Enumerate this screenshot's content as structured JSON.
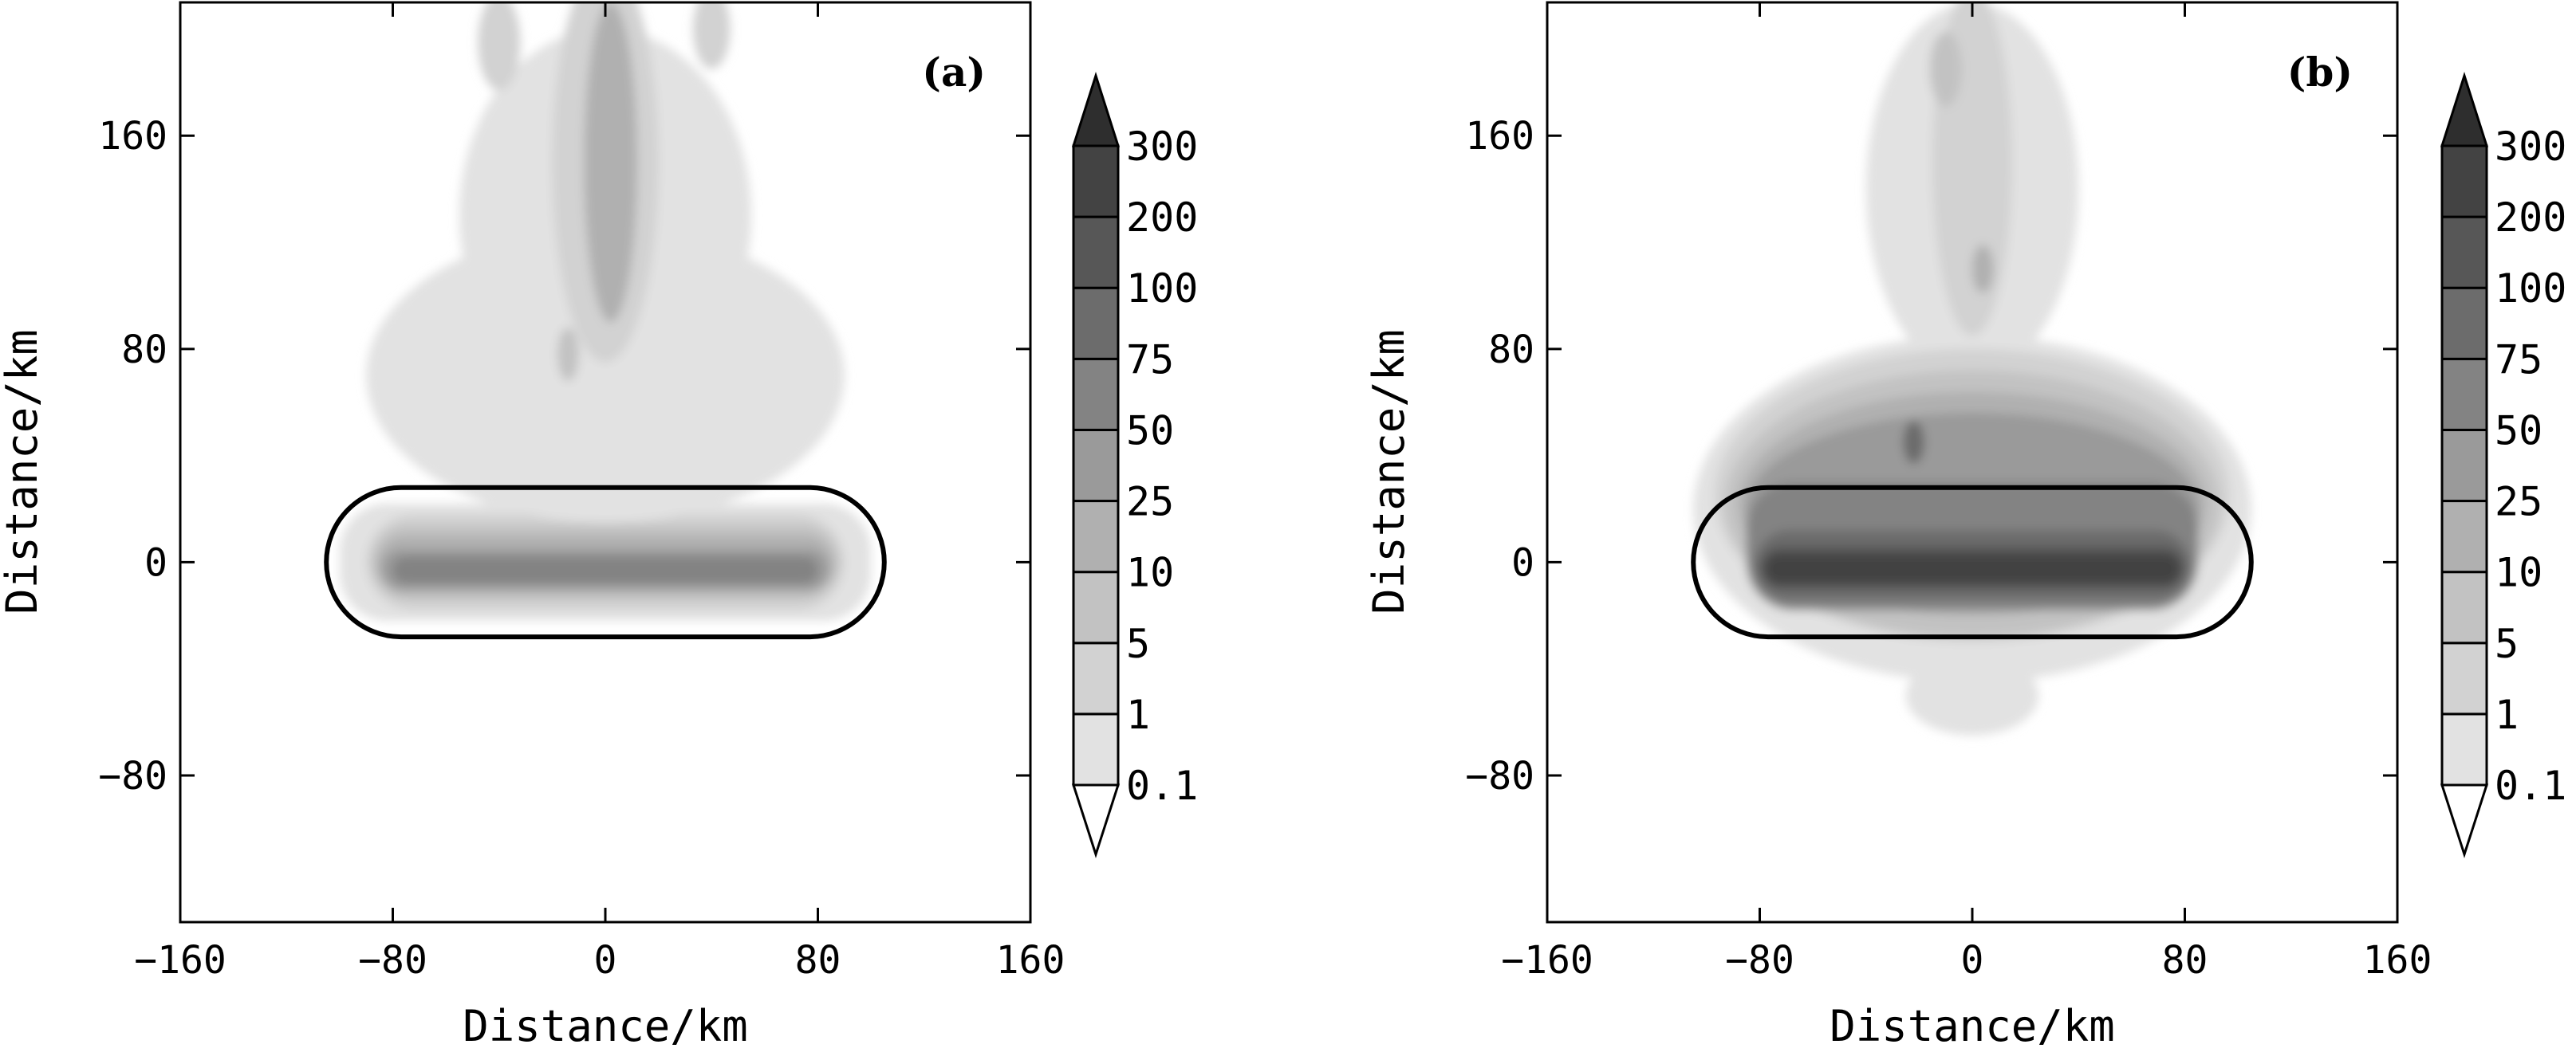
{
  "chart_data": [
    {
      "type": "heatmap",
      "panel_label": "(a)",
      "xlabel": "Distance/km",
      "ylabel": "Distance/km",
      "xlim": [
        -160,
        160
      ],
      "ylim": [
        -135,
        210
      ],
      "xticks": [
        -160,
        -80,
        0,
        80,
        160
      ],
      "xtick_labels": [
        "−160",
        "−80",
        "0",
        "80",
        "160"
      ],
      "yticks": [
        -80,
        0,
        80,
        160
      ],
      "ytick_labels": [
        "−80",
        "0",
        "80",
        "160"
      ],
      "grid": false,
      "outline_region": {
        "x_from": -105,
        "x_to": 105,
        "y_from": -28,
        "y_to": 28,
        "shape": "stadium"
      },
      "colorbar": {
        "levels": [
          "0.1",
          "1",
          "5",
          "10",
          "25",
          "50",
          "75",
          "100",
          "200",
          "300"
        ],
        "colors": [
          "#e2e2e2",
          "#d2d2d2",
          "#c2c2c2",
          "#b0b0b0",
          "#9a9a9a",
          "#838383",
          "#6c6c6c",
          "#575757",
          "#434343",
          "#2e2e2e"
        ],
        "extend": "both"
      },
      "features": [
        {
          "level": 0,
          "kind": "rect",
          "x": [
            -100,
            100
          ],
          "y": [
            -22,
            22
          ]
        },
        {
          "level": 1,
          "kind": "rect",
          "x": [
            -90,
            90
          ],
          "y": [
            -18,
            18
          ]
        },
        {
          "level": 2,
          "kind": "rect",
          "x": [
            -88,
            88
          ],
          "y": [
            -14,
            14
          ]
        },
        {
          "level": 3,
          "kind": "rect",
          "x": [
            -86,
            86
          ],
          "y": [
            -12,
            10
          ]
        },
        {
          "level": 4,
          "kind": "rect",
          "x": [
            -84,
            84
          ],
          "y": [
            -10,
            5
          ]
        },
        {
          "level": 5,
          "kind": "rect",
          "x": [
            -80,
            80
          ],
          "y": [
            -8,
            2
          ]
        },
        {
          "level": 0,
          "kind": "ellipse",
          "cx": 0,
          "cy": 70,
          "rx": 90,
          "ry": 55
        },
        {
          "level": 0,
          "kind": "ellipse",
          "cx": 0,
          "cy": 130,
          "rx": 55,
          "ry": 70
        },
        {
          "level": 1,
          "kind": "ellipse",
          "cx": 0,
          "cy": 150,
          "rx": 20,
          "ry": 75
        },
        {
          "level": 3,
          "kind": "ellipse",
          "cx": 2,
          "cy": 150,
          "rx": 10,
          "ry": 60
        },
        {
          "level": 1,
          "kind": "ellipse",
          "cx": -40,
          "cy": 195,
          "rx": 8,
          "ry": 18
        },
        {
          "level": 1,
          "kind": "ellipse",
          "cx": 40,
          "cy": 200,
          "rx": 7,
          "ry": 15
        },
        {
          "level": 2,
          "kind": "ellipse",
          "cx": -14,
          "cy": 78,
          "rx": 4,
          "ry": 10
        }
      ]
    },
    {
      "type": "heatmap",
      "panel_label": "(b)",
      "xlabel": "Distance/km",
      "ylabel": "Distance/km",
      "xlim": [
        -160,
        160
      ],
      "ylim": [
        -135,
        210
      ],
      "xticks": [
        -160,
        -80,
        0,
        80,
        160
      ],
      "xtick_labels": [
        "−160",
        "−80",
        "0",
        "80",
        "160"
      ],
      "yticks": [
        -80,
        0,
        80,
        160
      ],
      "ytick_labels": [
        "−80",
        "0",
        "80",
        "160"
      ],
      "grid": false,
      "outline_region": {
        "x_from": -105,
        "x_to": 105,
        "y_from": -28,
        "y_to": 28,
        "shape": "stadium"
      },
      "colorbar": {
        "levels": [
          "0.1",
          "1",
          "5",
          "10",
          "25",
          "50",
          "75",
          "100",
          "200",
          "300"
        ],
        "colors": [
          "#e2e2e2",
          "#d2d2d2",
          "#c2c2c2",
          "#b0b0b0",
          "#9a9a9a",
          "#838383",
          "#6c6c6c",
          "#575757",
          "#434343",
          "#2e2e2e"
        ],
        "extend": "both"
      },
      "features": [
        {
          "level": 0,
          "kind": "ellipse",
          "cx": 0,
          "cy": 20,
          "rx": 105,
          "ry": 65
        },
        {
          "level": 0,
          "kind": "ellipse",
          "cx": 0,
          "cy": -50,
          "rx": 25,
          "ry": 15
        },
        {
          "level": 0,
          "kind": "ellipse",
          "cx": 0,
          "cy": 140,
          "rx": 40,
          "ry": 70
        },
        {
          "level": 1,
          "kind": "ellipse",
          "cx": 0,
          "cy": 25,
          "rx": 97,
          "ry": 55
        },
        {
          "level": 2,
          "kind": "ellipse",
          "cx": 0,
          "cy": 22,
          "rx": 93,
          "ry": 50
        },
        {
          "level": 3,
          "kind": "ellipse",
          "cx": 0,
          "cy": 22,
          "rx": 88,
          "ry": 42
        },
        {
          "level": 4,
          "kind": "ellipse",
          "cx": 0,
          "cy": 20,
          "rx": 85,
          "ry": 36
        },
        {
          "level": 5,
          "kind": "rect",
          "x": [
            -85,
            85
          ],
          "y": [
            -18,
            30
          ]
        },
        {
          "level": 6,
          "kind": "rect",
          "x": [
            -82,
            82
          ],
          "y": [
            -14,
            12
          ]
        },
        {
          "level": 7,
          "kind": "rect",
          "x": [
            -80,
            80
          ],
          "y": [
            -10,
            6
          ]
        },
        {
          "level": 8,
          "kind": "rect",
          "x": [
            -78,
            78
          ],
          "y": [
            -8,
            3
          ]
        },
        {
          "level": 1,
          "kind": "ellipse",
          "cx": 0,
          "cy": 150,
          "rx": 15,
          "ry": 65
        },
        {
          "level": 2,
          "kind": "ellipse",
          "cx": -10,
          "cy": 185,
          "rx": 6,
          "ry": 14
        },
        {
          "level": 3,
          "kind": "ellipse",
          "cx": 4,
          "cy": 110,
          "rx": 4,
          "ry": 9
        },
        {
          "level": 6,
          "kind": "ellipse",
          "cx": -22,
          "cy": 45,
          "rx": 4,
          "ry": 8
        }
      ]
    }
  ]
}
